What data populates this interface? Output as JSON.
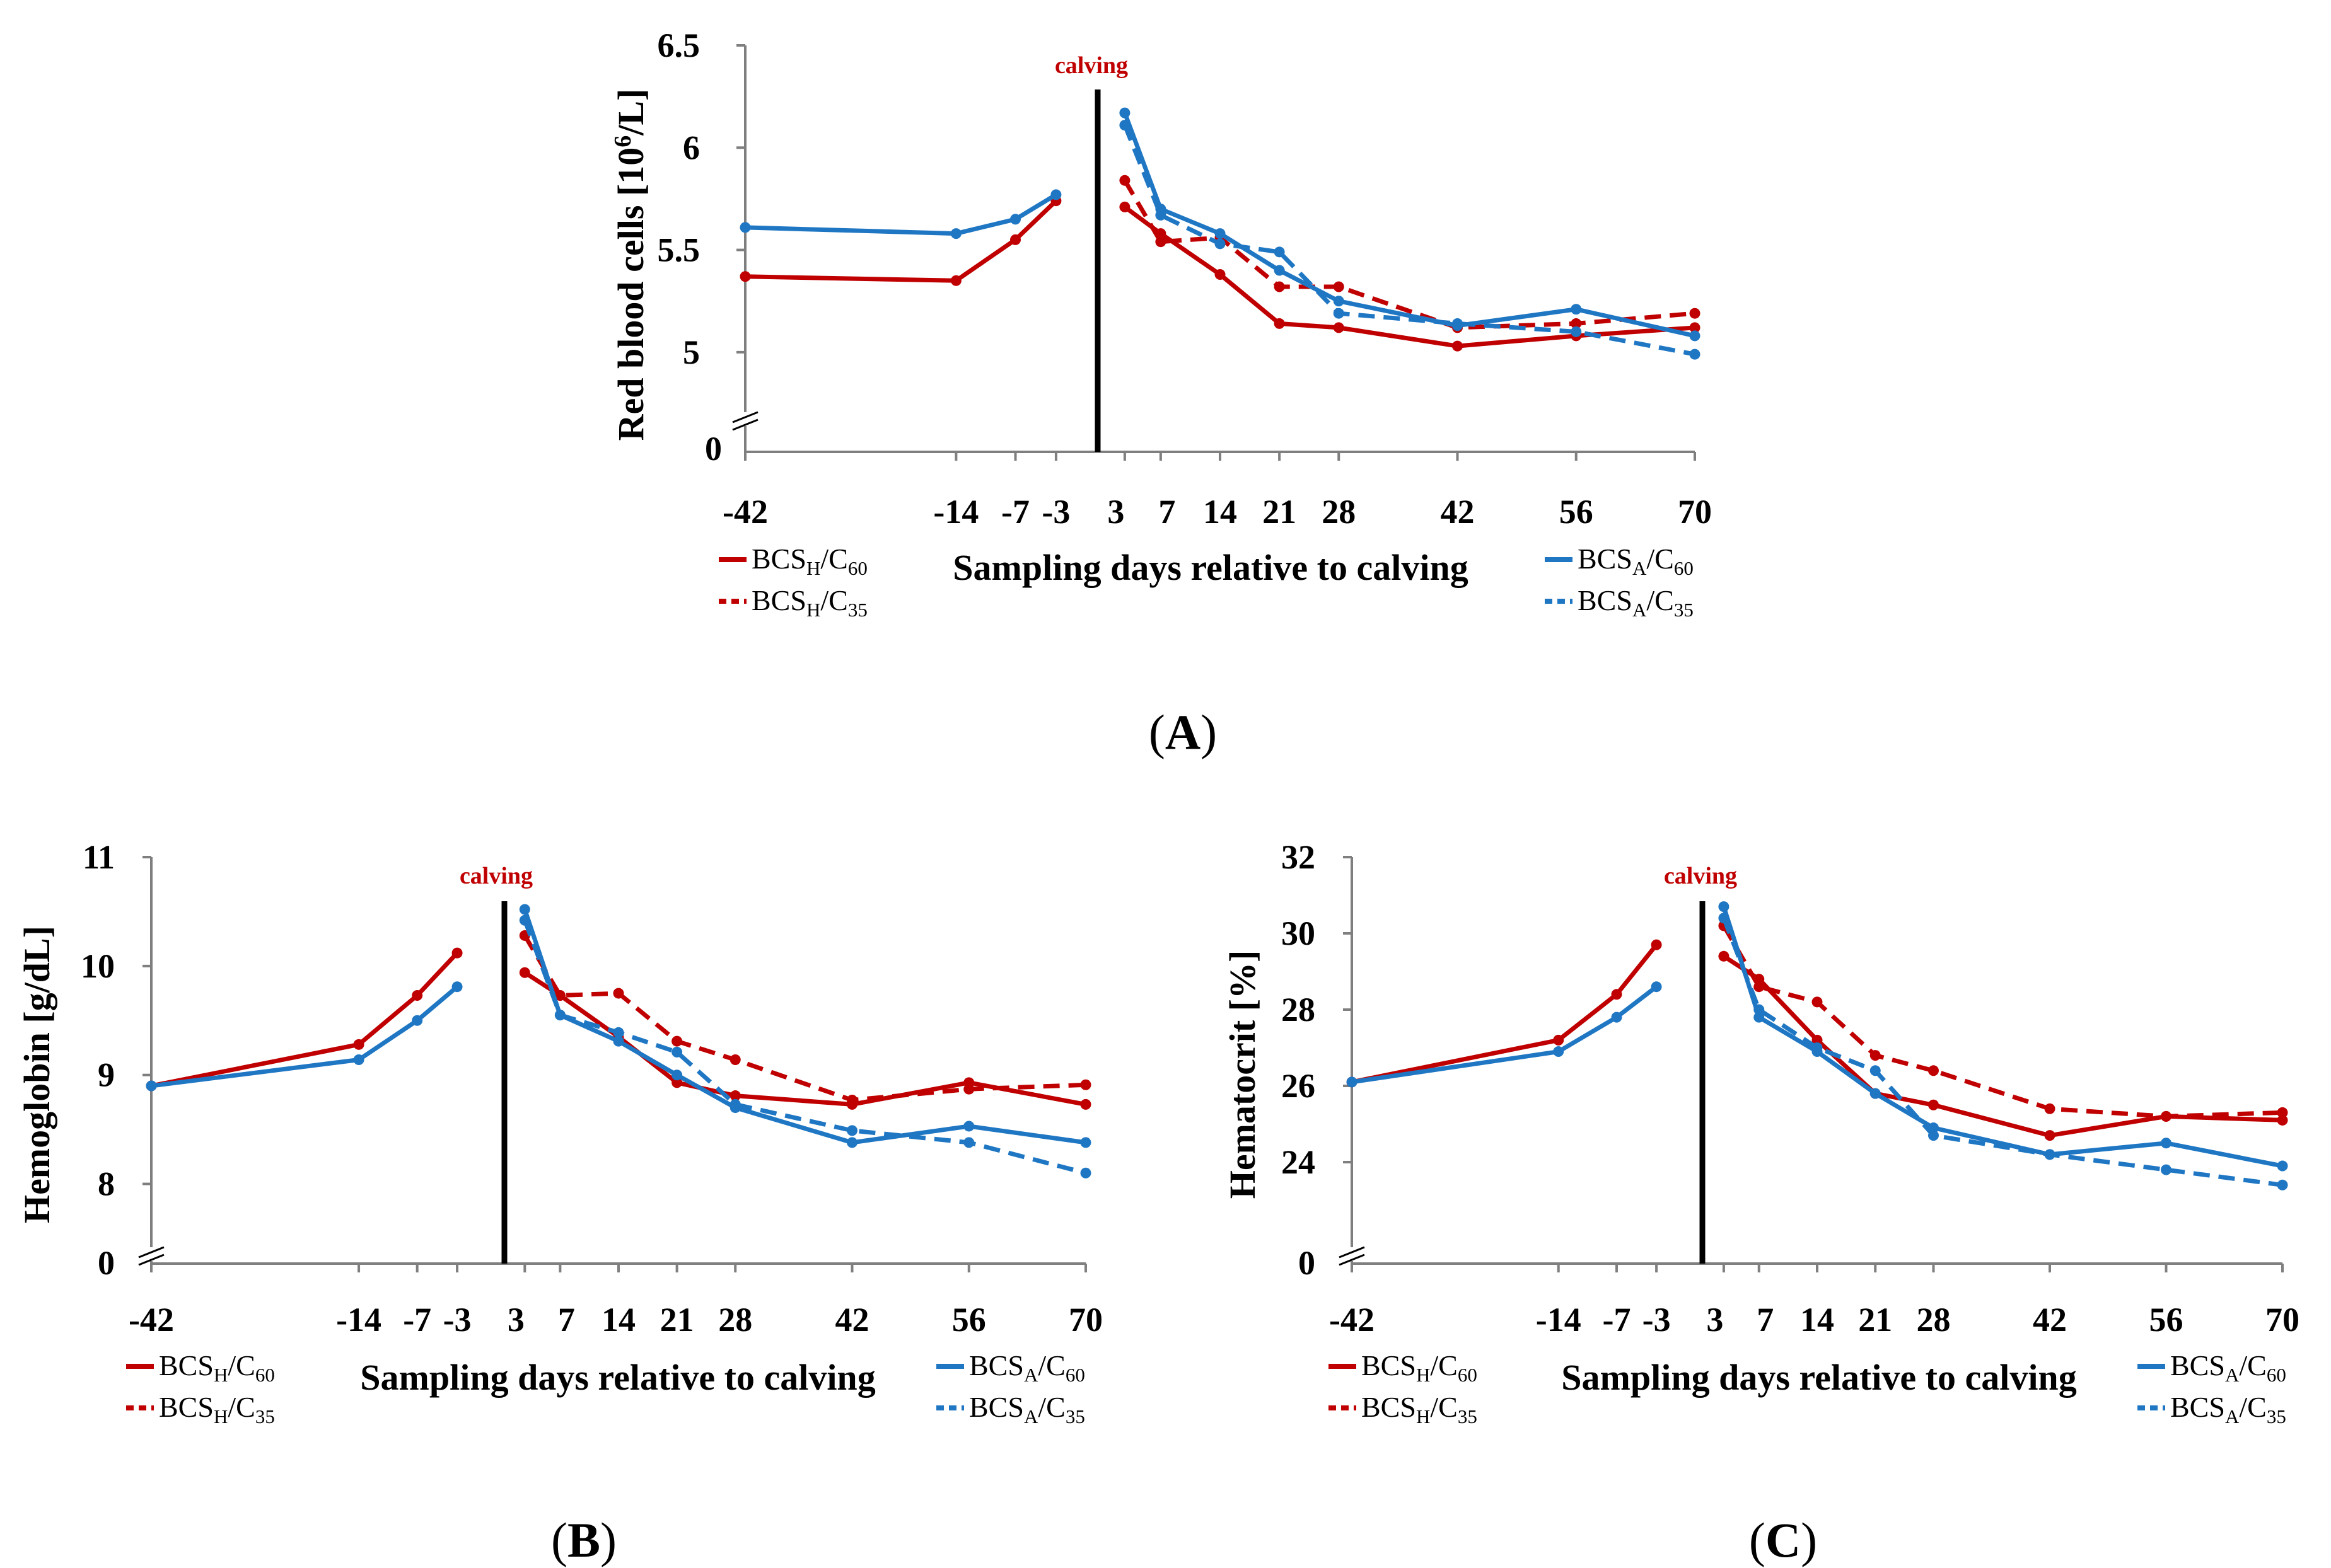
{
  "colors": {
    "bcs_h": "#c00000",
    "bcs_a": "#1f77c4",
    "axis": "#7f7f7f",
    "calving_line": "#000000",
    "calving_text": "#c00000"
  },
  "figure": {
    "common": {
      "calving_label": "calving",
      "x_label": "Sampling days relative to calving",
      "zero_label": "0",
      "x_ticks": [
        "-42",
        "-14",
        "-7",
        "-3",
        "3",
        "7",
        "14",
        "21",
        "28",
        "42",
        "56",
        "70"
      ],
      "legend": [
        {
          "key": "h60",
          "base": "BCS",
          "sub1": "H",
          "mid": "/C",
          "sub2": "60",
          "style": "solid",
          "color": "#c00000"
        },
        {
          "key": "h35",
          "base": "BCS",
          "sub1": "H",
          "mid": "/C",
          "sub2": "35",
          "style": "dashed",
          "color": "#c00000"
        },
        {
          "key": "a60",
          "base": "BCS",
          "sub1": "A",
          "mid": "/C",
          "sub2": "60",
          "style": "solid",
          "color": "#1f77c4"
        },
        {
          "key": "a35",
          "base": "BCS",
          "sub1": "A",
          "mid": "/C",
          "sub2": "35",
          "style": "dashed",
          "color": "#1f77c4"
        }
      ]
    },
    "panels": [
      {
        "id": "A",
        "panel_label": "A",
        "y_ticks": [
          "5",
          "5.5",
          "6",
          "6.5"
        ],
        "y_label_pre": "Red blood cells [10",
        "y_label_sup": "6",
        "y_label_post": "/L]"
      },
      {
        "id": "B",
        "panel_label": "B",
        "y_ticks": [
          "8",
          "9",
          "10",
          "11"
        ],
        "y_label_pre": "Hemoglobin [g/dL]",
        "y_label_sup": "",
        "y_label_post": ""
      },
      {
        "id": "C",
        "panel_label": "C",
        "y_ticks": [
          "24",
          "26",
          "28",
          "30",
          "32"
        ],
        "y_label_pre": "Hematocrit [%]",
        "y_label_sup": "",
        "y_label_post": ""
      }
    ]
  },
  "chart_data": [
    {
      "type": "line",
      "panel": "A",
      "title": "",
      "xlabel": "Sampling days relative to calving",
      "ylabel": "Red blood cells [10^6/L]",
      "ylim": [
        4.75,
        6.5
      ],
      "y_axis_break": true,
      "calving_marker": "calving",
      "x": [
        -42,
        -14,
        -7,
        -3,
        3,
        7,
        14,
        21,
        28,
        42,
        56,
        70
      ],
      "series": [
        {
          "name": "BCSH/C60",
          "style": "solid",
          "color": "#c00000",
          "points": [
            [
              -42,
              5.37
            ],
            [
              -14,
              5.35
            ],
            [
              -7,
              5.55
            ],
            [
              -3,
              5.74
            ],
            [
              3,
              5.71
            ],
            [
              7,
              5.58
            ],
            [
              14,
              5.38
            ],
            [
              21,
              5.14
            ],
            [
              28,
              5.12
            ],
            [
              42,
              5.03
            ],
            [
              56,
              5.08
            ],
            [
              70,
              5.12
            ]
          ]
        },
        {
          "name": "BCSH/C35",
          "style": "dashed",
          "color": "#c00000",
          "points": [
            [
              3,
              5.84
            ],
            [
              7,
              5.54
            ],
            [
              14,
              5.56
            ],
            [
              21,
              5.32
            ],
            [
              28,
              5.32
            ],
            [
              42,
              5.12
            ],
            [
              56,
              5.14
            ],
            [
              70,
              5.19
            ]
          ]
        },
        {
          "name": "BCSA/C60",
          "style": "solid",
          "color": "#1f77c4",
          "points": [
            [
              -42,
              5.61
            ],
            [
              -14,
              5.58
            ],
            [
              -7,
              5.65
            ],
            [
              -3,
              5.77
            ],
            [
              3,
              6.17
            ],
            [
              7,
              5.7
            ],
            [
              14,
              5.58
            ],
            [
              21,
              5.4
            ],
            [
              28,
              5.25
            ],
            [
              42,
              5.13
            ],
            [
              56,
              5.21
            ],
            [
              70,
              5.08
            ]
          ]
        },
        {
          "name": "BCSA/C35",
          "style": "dashed",
          "color": "#1f77c4",
          "points": [
            [
              3,
              6.11
            ],
            [
              7,
              5.67
            ],
            [
              14,
              5.53
            ],
            [
              21,
              5.49
            ],
            [
              28,
              5.19
            ],
            [
              42,
              5.14
            ],
            [
              56,
              5.1
            ],
            [
              70,
              4.99
            ]
          ]
        }
      ]
    },
    {
      "type": "line",
      "panel": "B",
      "title": "",
      "xlabel": "Sampling days relative to calving",
      "ylabel": "Hemoglobin [g/dL]",
      "ylim": [
        7.5,
        11
      ],
      "y_axis_break": true,
      "calving_marker": "calving",
      "x": [
        -42,
        -14,
        -7,
        -3,
        3,
        7,
        14,
        21,
        28,
        42,
        56,
        70
      ],
      "series": [
        {
          "name": "BCSH/C60",
          "style": "solid",
          "color": "#c00000",
          "points": [
            [
              -42,
              8.9
            ],
            [
              -14,
              9.28
            ],
            [
              -7,
              9.73
            ],
            [
              -3,
              10.12
            ],
            [
              3,
              9.94
            ],
            [
              7,
              9.73
            ],
            [
              14,
              9.35
            ],
            [
              21,
              8.93
            ],
            [
              28,
              8.81
            ],
            [
              42,
              8.73
            ],
            [
              56,
              8.93
            ],
            [
              70,
              8.73
            ]
          ]
        },
        {
          "name": "BCSH/C35",
          "style": "dashed",
          "color": "#c00000",
          "points": [
            [
              3,
              10.28
            ],
            [
              7,
              9.73
            ],
            [
              14,
              9.75
            ],
            [
              21,
              9.31
            ],
            [
              28,
              9.14
            ],
            [
              42,
              8.77
            ],
            [
              56,
              8.87
            ],
            [
              70,
              8.91
            ]
          ]
        },
        {
          "name": "BCSA/C60",
          "style": "solid",
          "color": "#1f77c4",
          "points": [
            [
              -42,
              8.9
            ],
            [
              -14,
              9.14
            ],
            [
              -7,
              9.5
            ],
            [
              -3,
              9.81
            ],
            [
              3,
              10.52
            ],
            [
              7,
              9.55
            ],
            [
              14,
              9.31
            ],
            [
              21,
              9.0
            ],
            [
              28,
              8.7
            ],
            [
              42,
              8.38
            ],
            [
              56,
              8.53
            ],
            [
              70,
              8.38
            ]
          ]
        },
        {
          "name": "BCSA/C35",
          "style": "dashed",
          "color": "#1f77c4",
          "points": [
            [
              3,
              10.42
            ],
            [
              7,
              9.55
            ],
            [
              14,
              9.39
            ],
            [
              21,
              9.21
            ],
            [
              28,
              8.73
            ],
            [
              42,
              8.49
            ],
            [
              56,
              8.38
            ],
            [
              70,
              8.1
            ]
          ]
        }
      ]
    },
    {
      "type": "line",
      "panel": "C",
      "title": "",
      "xlabel": "Sampling days relative to calving",
      "ylabel": "Hematocrit [%]",
      "ylim": [
        22,
        32
      ],
      "y_axis_break": true,
      "calving_marker": "calving",
      "x": [
        -42,
        -14,
        -7,
        -3,
        3,
        7,
        14,
        21,
        28,
        42,
        56,
        70
      ],
      "series": [
        {
          "name": "BCSH/C60",
          "style": "solid",
          "color": "#c00000",
          "points": [
            [
              -42,
              26.1
            ],
            [
              -14,
              27.2
            ],
            [
              -7,
              28.4
            ],
            [
              -3,
              29.7
            ],
            [
              3,
              29.4
            ],
            [
              7,
              28.8
            ],
            [
              14,
              27.2
            ],
            [
              21,
              25.8
            ],
            [
              28,
              25.5
            ],
            [
              42,
              24.7
            ],
            [
              56,
              25.2
            ],
            [
              70,
              25.1
            ]
          ]
        },
        {
          "name": "BCSH/C35",
          "style": "dashed",
          "color": "#c00000",
          "points": [
            [
              3,
              30.2
            ],
            [
              7,
              28.6
            ],
            [
              14,
              28.2
            ],
            [
              21,
              26.8
            ],
            [
              28,
              26.4
            ],
            [
              42,
              25.4
            ],
            [
              56,
              25.2
            ],
            [
              70,
              25.3
            ]
          ]
        },
        {
          "name": "BCSA/C60",
          "style": "solid",
          "color": "#1f77c4",
          "points": [
            [
              -42,
              26.1
            ],
            [
              -14,
              26.9
            ],
            [
              -7,
              27.8
            ],
            [
              -3,
              28.6
            ],
            [
              3,
              30.7
            ],
            [
              7,
              27.8
            ],
            [
              14,
              26.9
            ],
            [
              21,
              25.8
            ],
            [
              28,
              24.9
            ],
            [
              42,
              24.2
            ],
            [
              56,
              24.5
            ],
            [
              70,
              23.9
            ]
          ]
        },
        {
          "name": "BCSA/C35",
          "style": "dashed",
          "color": "#1f77c4",
          "points": [
            [
              3,
              30.4
            ],
            [
              7,
              28.0
            ],
            [
              14,
              27.0
            ],
            [
              21,
              26.4
            ],
            [
              28,
              24.7
            ],
            [
              42,
              24.2
            ],
            [
              56,
              23.8
            ],
            [
              70,
              23.4
            ]
          ]
        }
      ]
    }
  ]
}
